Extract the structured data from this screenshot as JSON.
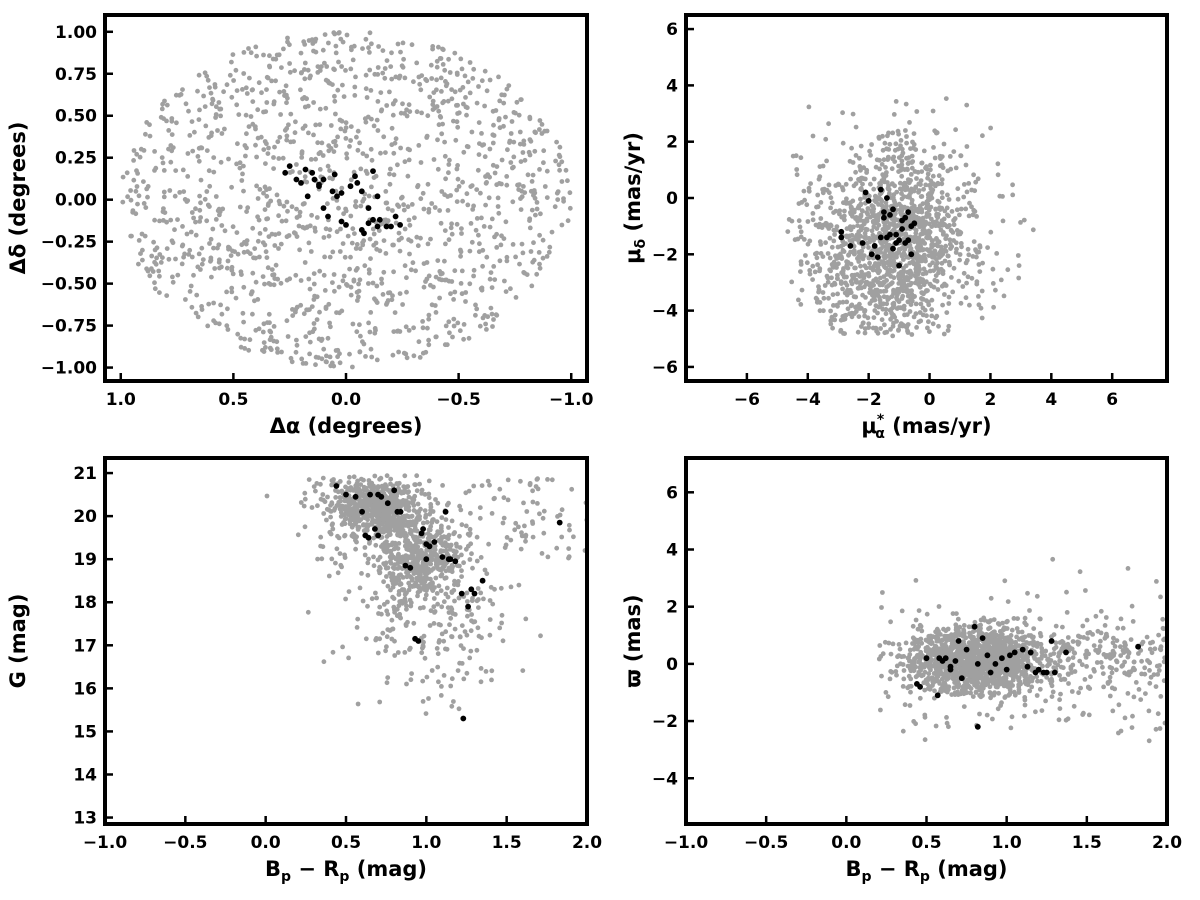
{
  "colors": {
    "field": "#a0a0a0",
    "members": "#000000",
    "axes": "#000000"
  },
  "chart_data": [
    {
      "type": "scatter",
      "xlabel": "Δα (degrees)",
      "ylabel": "Δδ (degrees)",
      "xlim": [
        1.07,
        -1.07
      ],
      "ylim": [
        -1.08,
        1.1
      ],
      "xticks": [
        1.0,
        0.5,
        0.0,
        -0.5,
        -1.0
      ],
      "xtick_labels": [
        "1.0",
        "0.5",
        "0.0",
        "−0.5",
        "−1.0"
      ],
      "yticks": [
        -1.0,
        -0.75,
        -0.5,
        -0.25,
        0.0,
        0.25,
        0.5,
        0.75,
        1.0
      ],
      "ytick_labels": [
        "−1.00",
        "−0.75",
        "−0.50",
        "−0.25",
        "0.00",
        "0.25",
        "0.50",
        "0.75",
        "1.00"
      ],
      "grid": false,
      "series": [
        {
          "field": "field stars",
          "count": 1400,
          "distribution": "uniform disk radius 1 deg"
        },
        {
          "field": "members",
          "x": [
            0.27,
            0.25,
            0.22,
            0.2,
            0.18,
            0.15,
            0.14,
            0.12,
            0.1,
            0.08,
            0.06,
            0.05,
            0.04,
            0.02,
            0.0,
            -0.02,
            -0.04,
            -0.05,
            -0.07,
            -0.08,
            -0.1,
            -0.12,
            -0.14,
            -0.15,
            -0.18,
            -0.2,
            -0.22,
            -0.24,
            -0.07,
            -0.1,
            0.12,
            0.02,
            -0.12,
            -0.14,
            0.17,
            0.1
          ],
          "y": [
            0.16,
            0.2,
            0.12,
            0.1,
            0.18,
            0.16,
            0.12,
            0.08,
            -0.05,
            -0.1,
            0.05,
            0.15,
            0.02,
            -0.13,
            -0.15,
            0.08,
            0.14,
            0.1,
            -0.18,
            -0.2,
            -0.05,
            -0.12,
            0.02,
            -0.12,
            -0.16,
            -0.16,
            -0.1,
            -0.15,
            0.05,
            -0.14,
            0.09,
            0.04,
            0.17,
            -0.16,
            0.02,
            0.12
          ]
        }
      ]
    },
    {
      "type": "scatter",
      "xlabel_main": "μ",
      "xlabel_sub": "α",
      "xlabel_sup": "*",
      "xlabel_unit": "(mas/yr)",
      "ylabel_main": "μ",
      "ylabel_sub": "δ",
      "ylabel_unit": "(mas/yr)",
      "xlim": [
        -8,
        7.8
      ],
      "ylim": [
        -6.5,
        6.5
      ],
      "xticks": [
        -6,
        -4,
        -2,
        0,
        2,
        4,
        6
      ],
      "xtick_labels": [
        "−6",
        "−4",
        "−2",
        "0",
        "2",
        "4",
        "6"
      ],
      "yticks": [
        -6,
        -4,
        -2,
        0,
        2,
        4,
        6
      ],
      "ytick_labels": [
        "−6",
        "−4",
        "−2",
        "0",
        "2",
        "4",
        "6"
      ],
      "grid": false,
      "series": [
        {
          "field": "field stars",
          "count": 1500,
          "distribution": "clipped at mu_delta ≈ -4.9"
        },
        {
          "field": "members",
          "x": [
            -2.1,
            -2.0,
            -1.9,
            -1.7,
            -1.6,
            -1.5,
            -1.4,
            -1.3,
            -1.2,
            -1.1,
            -1.0,
            -0.9,
            -0.8,
            -0.7,
            -0.6,
            -0.5,
            -1.8,
            -1.4,
            -2.6,
            -2.9,
            -1.0,
            -0.7,
            -1.2,
            -1.6,
            -0.9,
            -2.2,
            -1.5,
            -0.6,
            -1.1,
            -0.8,
            -1.3,
            -2.9
          ],
          "y": [
            0.2,
            -0.1,
            -2.0,
            -2.1,
            0.3,
            -0.5,
            -1.4,
            -0.6,
            -0.4,
            -1.6,
            -2.4,
            -1.1,
            -0.7,
            -0.5,
            -1.0,
            -0.9,
            -1.7,
            0.0,
            -1.7,
            -1.2,
            -1.5,
            -1.5,
            -1.8,
            -1.4,
            -0.8,
            -1.6,
            -0.7,
            -2.0,
            -1.3,
            -1.6,
            -1.3,
            -1.4
          ]
        }
      ]
    },
    {
      "type": "scatter",
      "xlabel_main": "B",
      "xlabel_sub": "p",
      "xlabel_mid": " − R",
      "xlabel_sub2": "p",
      "xlabel_unit": "(mag)",
      "ylabel": "G (mag)",
      "xlim": [
        -1.0,
        2.0
      ],
      "ylim": [
        12.85,
        21.35
      ],
      "y_inverted": false,
      "xticks": [
        -1.0,
        -0.5,
        0.0,
        0.5,
        1.0,
        1.5,
        2.0
      ],
      "xtick_labels": [
        "−1.0",
        "−0.5",
        "0.0",
        "0.5",
        "1.0",
        "1.5",
        "2.0"
      ],
      "yticks": [
        13,
        14,
        15,
        16,
        17,
        18,
        19,
        20,
        21
      ],
      "ytick_labels": [
        "13",
        "14",
        "15",
        "16",
        "17",
        "18",
        "19",
        "20",
        "21"
      ],
      "grid": false,
      "series": [
        {
          "field": "field stars",
          "count": 1500
        },
        {
          "field": "members",
          "x": [
            0.44,
            0.5,
            0.56,
            0.6,
            0.62,
            0.65,
            0.68,
            0.7,
            0.72,
            0.76,
            0.8,
            0.82,
            0.84,
            0.87,
            0.9,
            0.93,
            0.95,
            0.98,
            1.0,
            1.02,
            1.05,
            1.1,
            1.12,
            1.15,
            1.18,
            1.22,
            1.23,
            1.26,
            1.28,
            1.3,
            1.35,
            1.83,
            0.97,
            1.14,
            1.0,
            0.64,
            0.7
          ],
          "y": [
            20.7,
            20.5,
            20.45,
            20.1,
            19.55,
            20.5,
            19.7,
            20.5,
            20.45,
            20.3,
            20.6,
            20.1,
            20.1,
            18.85,
            18.8,
            17.15,
            17.1,
            19.7,
            19.0,
            19.3,
            19.4,
            19.05,
            20.1,
            19.0,
            18.95,
            18.2,
            15.3,
            17.9,
            18.3,
            18.2,
            18.5,
            19.85,
            19.6,
            19.0,
            19.35,
            19.5,
            19.55
          ]
        }
      ]
    },
    {
      "type": "scatter",
      "xlabel_main": "B",
      "xlabel_sub": "p",
      "xlabel_mid": " − R",
      "xlabel_sub2": "p",
      "xlabel_unit": "(mag)",
      "ylabel": "ϖ (mas)",
      "xlim": [
        -1.0,
        2.0
      ],
      "ylim": [
        -5.6,
        7.2
      ],
      "xticks": [
        -1.0,
        -0.5,
        0.0,
        0.5,
        1.0,
        1.5,
        2.0
      ],
      "xtick_labels": [
        "−1.0",
        "−0.5",
        "0.0",
        "0.5",
        "1.0",
        "1.5",
        "2.0"
      ],
      "yticks": [
        -4,
        -2,
        0,
        2,
        4,
        6
      ],
      "ytick_labels": [
        "−4",
        "−2",
        "0",
        "2",
        "4",
        "6"
      ],
      "grid": false,
      "series": [
        {
          "field": "field stars",
          "count": 1700
        },
        {
          "field": "members",
          "x": [
            0.44,
            0.5,
            0.57,
            0.6,
            0.62,
            0.65,
            0.68,
            0.7,
            0.72,
            0.75,
            0.8,
            0.82,
            0.85,
            0.88,
            0.9,
            0.93,
            0.97,
            1.0,
            1.02,
            1.05,
            1.1,
            1.13,
            1.15,
            1.18,
            1.2,
            1.23,
            1.25,
            1.28,
            1.3,
            1.37,
            1.82,
            0.82,
            0.58,
            0.46,
            0.65
          ],
          "y": [
            -0.7,
            0.2,
            -1.1,
            0.1,
            0.2,
            -0.1,
            0.1,
            0.8,
            -0.5,
            0.5,
            1.3,
            -2.2,
            0.9,
            0.3,
            -0.3,
            0.0,
            0.2,
            -0.2,
            0.3,
            0.4,
            0.5,
            -0.1,
            0.4,
            -0.3,
            -0.2,
            -0.3,
            -0.3,
            0.8,
            -0.3,
            0.4,
            0.6,
            0.0,
            0.2,
            -0.8,
            -0.2
          ]
        }
      ]
    }
  ]
}
